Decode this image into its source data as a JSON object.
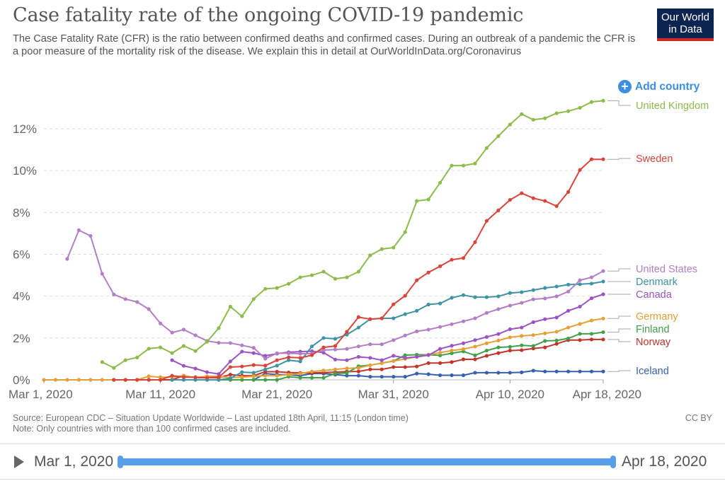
{
  "header": {
    "title": "Case fatality rate of the ongoing COVID-19 pandemic",
    "subtitle": "The Case Fatality Rate (CFR) is the ratio between confirmed deaths and confirmed cases. During an outbreak of a pandemic the CFR is a poor measure of the mortality risk of the disease. We explain this in detail at OurWorldInData.org/Coronavirus",
    "logo_line1": "Our World",
    "logo_line2": "in Data",
    "add_country": "Add country"
  },
  "footer": {
    "source": "Source: European CDC – Situation Update Worldwide – Last updated 18th April, 11:15 (London time)",
    "note": "Note: Only countries with more than 100 confirmed cases are included.",
    "license": "CC BY"
  },
  "timeline": {
    "start": "Mar 1, 2020",
    "end": "Apr 18, 2020",
    "range_fraction": [
      0,
      1
    ]
  },
  "chart_data": {
    "type": "line",
    "title": "Case fatality rate of the ongoing COVID-19 pandemic",
    "xlabel": "",
    "ylabel": "",
    "ylim": [
      0,
      13.4
    ],
    "yticks": [
      0,
      2,
      4,
      6,
      8,
      10,
      12
    ],
    "ytick_labels": [
      "0%",
      "2%",
      "4%",
      "6%",
      "8%",
      "10%",
      "12%"
    ],
    "xtick_labels": [
      "Mar 1, 2020",
      "Mar 11, 2020",
      "Mar 21, 2020",
      "Mar 31, 2020",
      "Apr 10, 2020",
      "Apr 18, 2020"
    ],
    "xtick_dates": [
      "2020-03-01",
      "2020-03-11",
      "2020-03-21",
      "2020-03-31",
      "2020-04-10",
      "2020-04-18"
    ],
    "grid": "horizontal dashed",
    "legend": "right, inline labels at line ends",
    "x": [
      "2020-03-01",
      "2020-03-02",
      "2020-03-03",
      "2020-03-04",
      "2020-03-05",
      "2020-03-06",
      "2020-03-07",
      "2020-03-08",
      "2020-03-09",
      "2020-03-10",
      "2020-03-11",
      "2020-03-12",
      "2020-03-13",
      "2020-03-14",
      "2020-03-15",
      "2020-03-16",
      "2020-03-17",
      "2020-03-18",
      "2020-03-19",
      "2020-03-20",
      "2020-03-21",
      "2020-03-22",
      "2020-03-23",
      "2020-03-24",
      "2020-03-25",
      "2020-03-26",
      "2020-03-27",
      "2020-03-28",
      "2020-03-29",
      "2020-03-30",
      "2020-03-31",
      "2020-04-01",
      "2020-04-02",
      "2020-04-03",
      "2020-04-04",
      "2020-04-05",
      "2020-04-06",
      "2020-04-07",
      "2020-04-08",
      "2020-04-09",
      "2020-04-10",
      "2020-04-11",
      "2020-04-12",
      "2020-04-13",
      "2020-04-14",
      "2020-04-15",
      "2020-04-16",
      "2020-04-17",
      "2020-04-18"
    ],
    "series": [
      {
        "name": "United Kingdom",
        "color": "#8dbb4c",
        "values": [
          null,
          null,
          null,
          null,
          null,
          0.85,
          0.57,
          0.94,
          1.07,
          1.49,
          1.55,
          1.28,
          1.62,
          1.38,
          1.82,
          2.47,
          3.5,
          3.04,
          3.86,
          4.35,
          4.39,
          4.59,
          4.9,
          5.0,
          5.17,
          4.83,
          4.9,
          5.17,
          5.95,
          6.25,
          6.32,
          7.06,
          8.55,
          8.62,
          9.42,
          10.24,
          10.24,
          10.34,
          11.08,
          11.65,
          12.2,
          12.7,
          12.43,
          12.5,
          12.74,
          12.84,
          13.0,
          13.28,
          13.34
        ]
      },
      {
        "name": "Sweden",
        "color": "#d8443a",
        "values": [
          null,
          null,
          null,
          null,
          null,
          null,
          0,
          0,
          0,
          0,
          0,
          0.2,
          0.13,
          0.13,
          0.1,
          0.13,
          0.61,
          0.64,
          0.71,
          0.68,
          0.94,
          1.08,
          1.05,
          1.18,
          1.55,
          1.62,
          2.3,
          3.0,
          2.9,
          2.94,
          3.61,
          4.02,
          4.76,
          5.13,
          5.43,
          5.74,
          5.82,
          6.58,
          7.6,
          8.1,
          8.6,
          8.92,
          8.68,
          8.55,
          8.3,
          8.98,
          10.03,
          10.54,
          10.54
        ]
      },
      {
        "name": "United States",
        "color": "#b27fc6",
        "values": [
          null,
          null,
          5.78,
          7.15,
          6.88,
          5.07,
          4.08,
          3.86,
          3.72,
          3.38,
          2.7,
          2.26,
          2.4,
          2.13,
          1.86,
          1.77,
          1.76,
          1.65,
          1.53,
          1.01,
          1.27,
          1.27,
          1.25,
          1.25,
          1.42,
          1.45,
          1.48,
          1.6,
          1.7,
          1.7,
          1.9,
          2.12,
          2.32,
          2.4,
          2.53,
          2.66,
          2.8,
          2.94,
          3.2,
          3.38,
          3.55,
          3.68,
          3.85,
          3.89,
          3.99,
          4.22,
          4.76,
          4.9,
          5.2
        ]
      },
      {
        "name": "Denmark",
        "color": "#3f93a3",
        "values": [
          null,
          null,
          null,
          null,
          null,
          null,
          null,
          null,
          null,
          null,
          null,
          0,
          0,
          0,
          0,
          0,
          0.07,
          0.37,
          0.34,
          0.5,
          0.68,
          0.94,
          0.88,
          1.6,
          2.0,
          1.96,
          2.16,
          2.5,
          2.9,
          2.94,
          2.94,
          3.14,
          3.3,
          3.6,
          3.65,
          3.92,
          4.05,
          3.95,
          3.95,
          3.99,
          4.15,
          4.19,
          4.29,
          4.39,
          4.46,
          4.55,
          4.57,
          4.6,
          4.7
        ]
      },
      {
        "name": "Canada",
        "color": "#9b54c4",
        "values": [
          null,
          null,
          null,
          null,
          null,
          null,
          null,
          null,
          null,
          null,
          null,
          0.94,
          0.67,
          0.54,
          0.37,
          0.28,
          0.88,
          1.35,
          1.28,
          1.15,
          1.25,
          1.32,
          1.35,
          1.37,
          1.3,
          0.97,
          0.94,
          1.1,
          1.05,
          0.94,
          1.15,
          1.05,
          1.1,
          1.18,
          1.48,
          1.63,
          1.75,
          1.9,
          2.05,
          2.19,
          2.42,
          2.5,
          2.76,
          2.9,
          2.98,
          3.3,
          3.5,
          3.9,
          4.09
        ]
      },
      {
        "name": "Germany",
        "color": "#e5a03a",
        "values": [
          0,
          0,
          0,
          0,
          0,
          0,
          0,
          0,
          0,
          0.17,
          0.13,
          0.13,
          0.2,
          0.1,
          0.17,
          0.17,
          0.1,
          0.13,
          0.17,
          0.2,
          0.2,
          0.25,
          0.3,
          0.4,
          0.45,
          0.5,
          0.55,
          0.57,
          0.7,
          0.8,
          0.9,
          1.0,
          1.1,
          1.2,
          1.3,
          1.4,
          1.47,
          1.59,
          1.75,
          1.88,
          2.03,
          2.1,
          2.14,
          2.22,
          2.3,
          2.5,
          2.67,
          2.84,
          2.93
        ]
      },
      {
        "name": "Finland",
        "color": "#40a04b",
        "values": [
          null,
          null,
          null,
          null,
          null,
          null,
          null,
          null,
          null,
          null,
          null,
          null,
          null,
          null,
          0,
          0,
          0,
          0,
          0,
          0,
          0,
          0.15,
          0.1,
          0.1,
          0.1,
          0.3,
          0.33,
          0.65,
          0.7,
          0.8,
          0.9,
          1.18,
          1.2,
          1.2,
          1.17,
          1.27,
          1.36,
          1.17,
          1.4,
          1.55,
          1.58,
          1.65,
          1.62,
          1.86,
          1.88,
          1.98,
          2.2,
          2.2,
          2.28
        ]
      },
      {
        "name": "Norway",
        "color": "#c0362c",
        "values": [
          null,
          null,
          null,
          null,
          null,
          null,
          0,
          0,
          0,
          0,
          0,
          0,
          0.2,
          0.1,
          0.1,
          0.1,
          0.25,
          0.2,
          0.2,
          0.39,
          0.39,
          0.35,
          0.33,
          0.33,
          0.35,
          0.37,
          0.4,
          0.4,
          0.5,
          0.5,
          0.61,
          0.61,
          0.64,
          0.8,
          0.8,
          0.85,
          0.98,
          0.98,
          1.15,
          1.28,
          1.4,
          1.42,
          1.5,
          1.55,
          1.72,
          1.9,
          1.9,
          1.93,
          1.93
        ]
      },
      {
        "name": "Iceland",
        "color": "#3660ad",
        "values": [
          null,
          null,
          null,
          null,
          null,
          null,
          null,
          null,
          null,
          null,
          null,
          null,
          null,
          null,
          null,
          null,
          0,
          0,
          0,
          0.3,
          0.25,
          0.25,
          0.2,
          0.3,
          0.3,
          0.25,
          0.2,
          0.2,
          0.15,
          0.15,
          0.15,
          0.15,
          0.3,
          0.27,
          0.22,
          0.22,
          0.22,
          0.34,
          0.34,
          0.34,
          0.34,
          0.36,
          0.44,
          0.4,
          0.4,
          0.4,
          0.4,
          0.4,
          0.4
        ]
      }
    ]
  }
}
